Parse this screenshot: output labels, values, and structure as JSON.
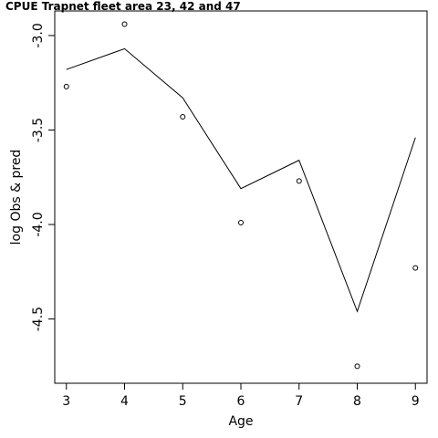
{
  "chart_data": {
    "type": "line",
    "title": "CPUE Trapnet fleet area 23, 42 and 47",
    "xlabel": "Age",
    "ylabel": "log Obs & pred",
    "x": [
      3,
      4,
      5,
      6,
      7,
      8,
      9
    ],
    "xticks": [
      "3",
      "4",
      "5",
      "6",
      "7",
      "8",
      "9"
    ],
    "yticks": [
      -3.0,
      -3.5,
      -4.0,
      -4.5
    ],
    "ytick_labels": [
      "-3.0",
      "-3.5",
      "-4.0",
      "-4.5"
    ],
    "xlim": [
      2.8,
      9.2
    ],
    "ylim": [
      -4.84,
      -2.87
    ],
    "series": [
      {
        "style": "points-hollow",
        "values": [
          -3.27,
          -2.94,
          -3.43,
          -3.99,
          -3.77,
          -4.75,
          -4.23
        ]
      },
      {
        "style": "line",
        "values": [
          -3.18,
          -3.07,
          -3.33,
          -3.81,
          -3.66,
          -4.46,
          -3.54
        ]
      }
    ],
    "grid": false,
    "colors": {
      "line": "#000000",
      "points": "#000000",
      "frame": "#000000"
    }
  }
}
